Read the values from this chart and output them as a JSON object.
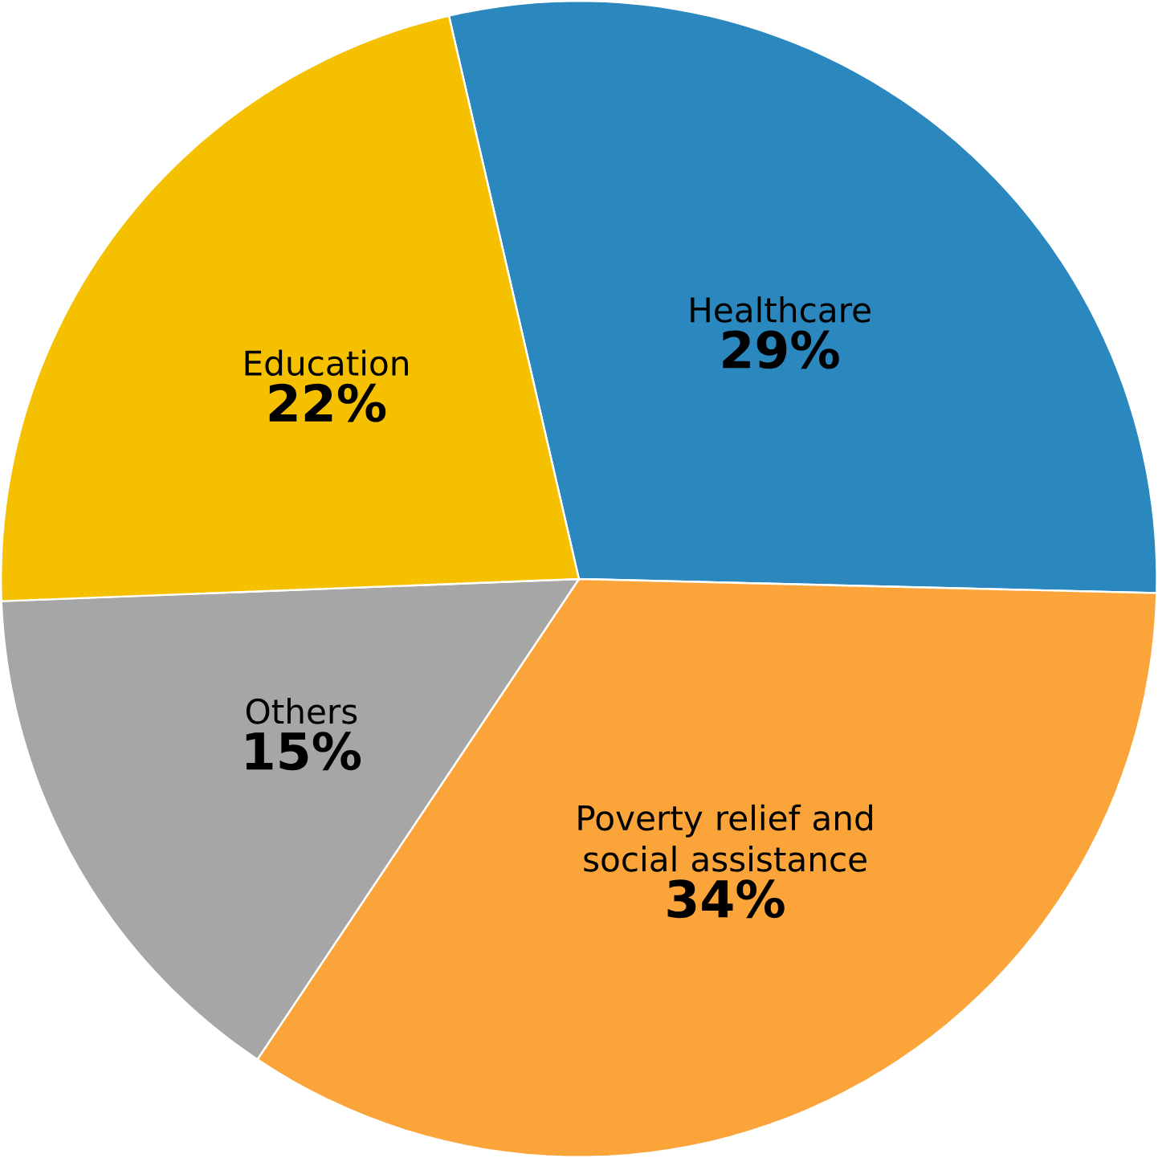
{
  "chart_data": {
    "type": "pie",
    "categories": [
      "Healthcare",
      "Poverty relief and social assistance",
      "Others",
      "Education"
    ],
    "values": [
      29,
      34,
      15,
      22
    ],
    "value_labels": [
      "29%",
      "34%",
      "15%",
      "22%"
    ],
    "colors": [
      "#2a88bf",
      "#fba43a",
      "#a6a6a6",
      "#f5c000"
    ]
  }
}
